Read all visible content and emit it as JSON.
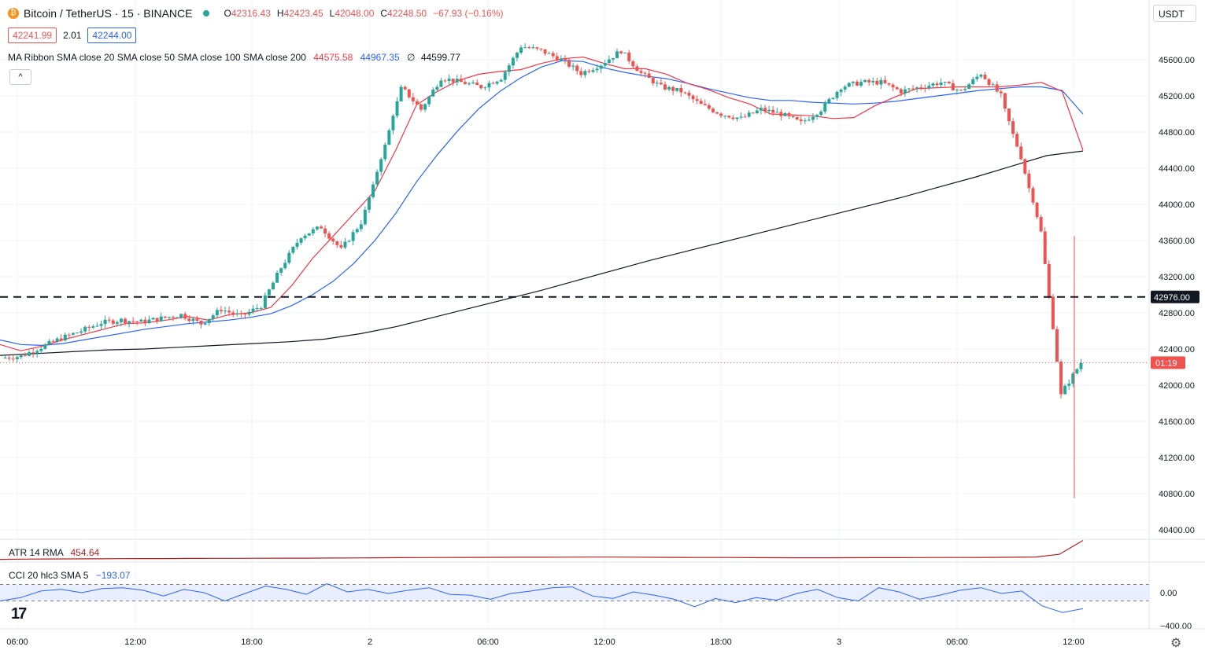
{
  "header": {
    "symbol": "Bitcoin / TetherUS · 15 · BINANCE",
    "open": "42316.43",
    "high": "42423.45",
    "low": "42048.00",
    "close": "42248.50",
    "change": "−67.93 (−0.16%)",
    "bid": "42241.99",
    "spread": "2.01",
    "ask": "42244.00",
    "ma_ribbon_label": "MA Ribbon SMA close 20 SMA close 50 SMA close 100 SMA close 200",
    "ma20_value": "44575.58",
    "ma50_value": "44967.35",
    "ma100_value": "∅",
    "ma200_value": "44599.77",
    "collapse_glyph": "^",
    "currency": "USDT"
  },
  "indicators": {
    "atr_label": "ATR 14 RMA",
    "atr_value": "454.64",
    "cci_label": "CCI 20 hlc3 SMA 5",
    "cci_value": "−193.07"
  },
  "logo_text": "17",
  "colors": {
    "up": "#26a69a",
    "down": "#ef5350",
    "ma20": "#f23645",
    "ma50": "#2962ff",
    "ma200": "#131722",
    "atr": "#b71c1c",
    "cci": "#2962ff"
  },
  "chart_data": {
    "type": "candlestick",
    "timeframe": "15",
    "price_axis_ticks": [
      "40400.00",
      "40800.00",
      "41200.00",
      "41600.00",
      "42000.00",
      "42400.00",
      "42800.00",
      "43200.00",
      "43600.00",
      "44000.00",
      "44400.00",
      "44800.00",
      "45200.00",
      "45600.00"
    ],
    "time_axis_ticks": [
      "06:00",
      "12:00",
      "18:00",
      "2",
      "06:00",
      "12:00",
      "18:00",
      "3",
      "06:00",
      "12:00"
    ],
    "cci_axis_ticks": [
      "0.00",
      "−400.00"
    ],
    "horizontal_line": {
      "value": 42976.0,
      "label": "42976.00",
      "style": "dashed"
    },
    "last_price_countdown": "01:19",
    "last_price": 42248.5,
    "price_series": [
      42300,
      42320,
      42420,
      42520,
      42600,
      42690,
      42720,
      42700,
      42740,
      42780,
      42680,
      42840,
      42760,
      42880,
      43300,
      43650,
      43750,
      43500,
      43800,
      44500,
      45300,
      45050,
      45400,
      45350,
      45300,
      45400,
      45750,
      45700,
      45600,
      45450,
      45550,
      45700,
      45450,
      45300,
      45250,
      45100,
      45000,
      44950,
      45050,
      45000,
      44900,
      45050,
      45300,
      45350,
      45350,
      45250,
      45300,
      45350,
      45250,
      45450,
      45200,
      44500,
      43700,
      41900,
      42250
    ],
    "ma20_series": [
      42450,
      42380,
      42430,
      42500,
      42560,
      42620,
      42680,
      42690,
      42720,
      42760,
      42720,
      42780,
      42800,
      42860,
      43100,
      43400,
      43650,
      43900,
      44150,
      44600,
      45100,
      45250,
      45370,
      45440,
      45470,
      45490,
      45560,
      45610,
      45630,
      45560,
      45500,
      45500,
      45440,
      45340,
      45270,
      45180,
      45110,
      45000,
      44990,
      44980,
      44950,
      44960,
      45090,
      45190,
      45280,
      45290,
      45300,
      45300,
      45300,
      45320,
      45350,
      45250,
      44600
    ],
    "ma50_series": [
      42500,
      42450,
      42440,
      42460,
      42500,
      42540,
      42580,
      42620,
      42650,
      42680,
      42700,
      42720,
      42750,
      42790,
      42880,
      43000,
      43150,
      43350,
      43600,
      43900,
      44250,
      44550,
      44820,
      45060,
      45250,
      45400,
      45520,
      45590,
      45580,
      45510,
      45460,
      45420,
      45390,
      45340,
      45280,
      45230,
      45180,
      45150,
      45150,
      45130,
      45120,
      45110,
      45120,
      45140,
      45170,
      45200,
      45230,
      45260,
      45280,
      45300,
      45300,
      45260,
      45000
    ],
    "ma200_series": [
      42330,
      42350,
      42370,
      42390,
      42400,
      42420,
      42440,
      42460,
      42480,
      42510,
      42570,
      42650,
      42750,
      42850,
      42950,
      43050,
      43160,
      43270,
      43380,
      43480,
      43580,
      43680,
      43780,
      43880,
      43980,
      44080,
      44190,
      44300,
      44420,
      44540,
      44590
    ],
    "atr_series": [
      175,
      178,
      180,
      182,
      183,
      185,
      186,
      186,
      188,
      190,
      190,
      191,
      192,
      192,
      194,
      196,
      198,
      200,
      201,
      202,
      204,
      205,
      206,
      206,
      207,
      208,
      208,
      207,
      205,
      204,
      203,
      202,
      200,
      199,
      198,
      198,
      199,
      200,
      200,
      201,
      202,
      203,
      204,
      206,
      210,
      250,
      454.64
    ],
    "cci_series": [
      -100,
      -60,
      20,
      40,
      0,
      50,
      60,
      30,
      -40,
      40,
      0,
      -100,
      -10,
      80,
      40,
      -20,
      110,
      10,
      40,
      -10,
      30,
      60,
      -20,
      -30,
      -80,
      -10,
      20,
      60,
      70,
      -40,
      -70,
      10,
      -30,
      -80,
      -170,
      -70,
      -120,
      -60,
      -90,
      -10,
      40,
      -60,
      -100,
      60,
      10,
      -80,
      -30,
      30,
      60,
      -10,
      20,
      -160,
      -240,
      -193.07
    ]
  }
}
